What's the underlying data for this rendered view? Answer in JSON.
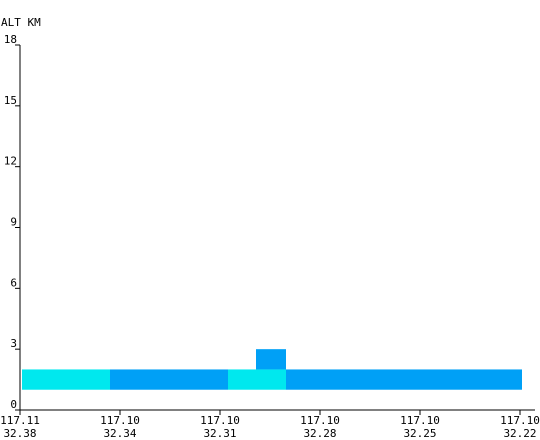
{
  "chart_data": {
    "type": "heatmap",
    "title": "",
    "ylabel": "ALT KM",
    "ylim": [
      0,
      18
    ],
    "yticks": [
      {
        "value": 0,
        "label": "0"
      },
      {
        "value": 3,
        "label": "3"
      },
      {
        "value": 6,
        "label": "6"
      },
      {
        "value": 9,
        "label": "9"
      },
      {
        "value": 12,
        "label": "12"
      },
      {
        "value": 15,
        "label": "15"
      },
      {
        "value": 18,
        "label": "18"
      }
    ],
    "xlim": [
      0,
      5
    ],
    "xticks": [
      {
        "value": 0,
        "lon": "117.11",
        "lat": "32.38"
      },
      {
        "value": 1,
        "lon": "117.10",
        "lat": "32.34"
      },
      {
        "value": 2,
        "lon": "117.10",
        "lat": "32.31"
      },
      {
        "value": 3,
        "lon": "117.10",
        "lat": "32.28"
      },
      {
        "value": 4,
        "lon": "117.10",
        "lat": "32.25"
      },
      {
        "value": 5,
        "lon": "117.10",
        "lat": "32.22"
      }
    ],
    "cells": [
      {
        "x0": 0.02,
        "x1": 0.9,
        "y0": 1.0,
        "y1": 2.0,
        "color": "#00e8ee"
      },
      {
        "x0": 0.9,
        "x1": 2.08,
        "y0": 1.0,
        "y1": 2.0,
        "color": "#00a0f6"
      },
      {
        "x0": 2.08,
        "x1": 2.66,
        "y0": 1.0,
        "y1": 2.0,
        "color": "#00e8ee"
      },
      {
        "x0": 2.36,
        "x1": 2.66,
        "y0": 2.0,
        "y1": 3.0,
        "color": "#00a0f6"
      },
      {
        "x0": 2.66,
        "x1": 5.02,
        "y0": 1.0,
        "y1": 2.0,
        "color": "#00a0f6"
      }
    ]
  }
}
